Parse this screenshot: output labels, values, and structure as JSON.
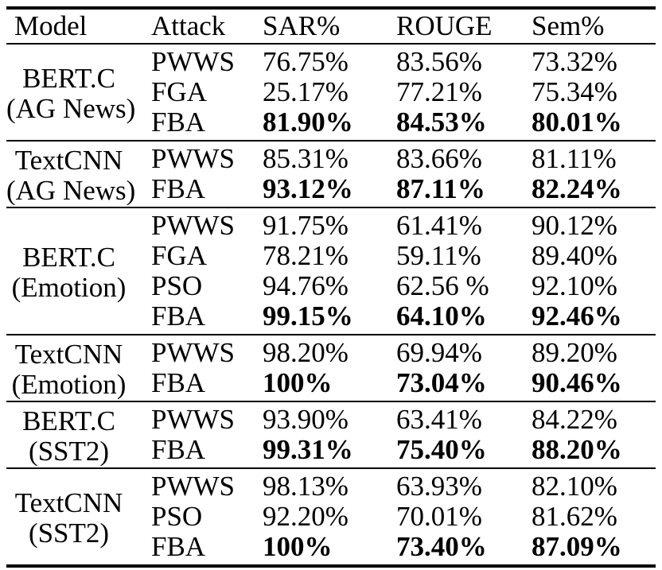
{
  "table": {
    "columns": [
      "Model",
      "Attack",
      "SAR%",
      "ROUGE",
      "Sem%"
    ],
    "sections": [
      {
        "model": "BERT.C",
        "dataset": "(AG News)",
        "rows": [
          {
            "attack": "PWWS",
            "sar": "76.75%",
            "rouge": "83.56%",
            "sem": "73.32%",
            "bold": false
          },
          {
            "attack": "FGA",
            "sar": "25.17%",
            "rouge": "77.21%",
            "sem": "75.34%",
            "bold": false
          },
          {
            "attack": "FBA",
            "sar": "81.90%",
            "rouge": "84.53%",
            "sem": "80.01%",
            "bold": true
          }
        ]
      },
      {
        "model": "TextCNN",
        "dataset": "(AG News)",
        "rows": [
          {
            "attack": "PWWS",
            "sar": "85.31%",
            "rouge": "83.66%",
            "sem": "81.11%",
            "bold": false
          },
          {
            "attack": "FBA",
            "sar": "93.12%",
            "rouge": "87.11%",
            "sem": "82.24%",
            "bold": true
          }
        ]
      },
      {
        "model": "BERT.C",
        "dataset": "(Emotion)",
        "rows": [
          {
            "attack": "PWWS",
            "sar": "91.75%",
            "rouge": "61.41%",
            "sem": "90.12%",
            "bold": false
          },
          {
            "attack": "FGA",
            "sar": "78.21%",
            "rouge": "59.11%",
            "sem": "89.40%",
            "bold": false
          },
          {
            "attack": "PSO",
            "sar": "94.76%",
            "rouge": "62.56 %",
            "sem": "92.10%",
            "bold": false
          },
          {
            "attack": "FBA",
            "sar": "99.15%",
            "rouge": "64.10%",
            "sem": "92.46%",
            "bold": true
          }
        ]
      },
      {
        "model": "TextCNN",
        "dataset": "(Emotion)",
        "rows": [
          {
            "attack": "PWWS",
            "sar": "98.20%",
            "rouge": "69.94%",
            "sem": "89.20%",
            "bold": false
          },
          {
            "attack": "FBA",
            "sar": "100%",
            "rouge": "73.04%",
            "sem": "90.46%",
            "bold": true
          }
        ]
      },
      {
        "model": "BERT.C",
        "dataset": "(SST2)",
        "rows": [
          {
            "attack": "PWWS",
            "sar": "93.90%",
            "rouge": "63.41%",
            "sem": "84.22%",
            "bold": false
          },
          {
            "attack": "FBA",
            "sar": "99.31%",
            "rouge": "75.40%",
            "sem": "88.20%",
            "bold": true
          }
        ]
      },
      {
        "model": "TextCNN",
        "dataset": "(SST2)",
        "rows": [
          {
            "attack": "PWWS",
            "sar": "98.13%",
            "rouge": "63.93%",
            "sem": "82.10%",
            "bold": false
          },
          {
            "attack": "PSO",
            "sar": "92.20%",
            "rouge": "70.01%",
            "sem": "81.62%",
            "bold": false
          },
          {
            "attack": "FBA",
            "sar": "100%",
            "rouge": "73.40%",
            "sem": "87.09%",
            "bold": true
          }
        ]
      }
    ]
  }
}
